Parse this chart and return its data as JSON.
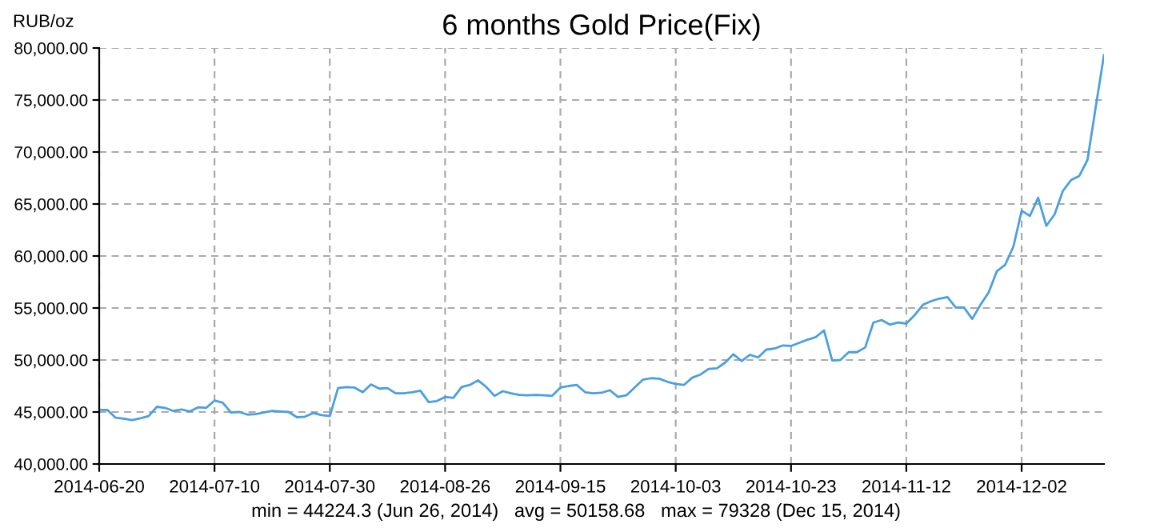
{
  "chart_data": {
    "type": "line",
    "title": "6 months Gold Price(Fix)",
    "ylabel": "RUB/oz",
    "categories": [
      "2014-06-20",
      null,
      null,
      null,
      null,
      null,
      null,
      null,
      null,
      null,
      null,
      null,
      null,
      null,
      "2014-07-10",
      null,
      null,
      null,
      null,
      null,
      null,
      null,
      null,
      null,
      null,
      null,
      null,
      null,
      "2014-07-30",
      null,
      null,
      null,
      null,
      null,
      null,
      null,
      null,
      null,
      null,
      null,
      null,
      null,
      "2014-08-26",
      null,
      null,
      null,
      null,
      null,
      null,
      null,
      null,
      null,
      null,
      null,
      null,
      null,
      "2014-09-15",
      null,
      null,
      null,
      null,
      null,
      null,
      null,
      null,
      null,
      null,
      null,
      null,
      null,
      "2014-10-03",
      null,
      null,
      null,
      null,
      null,
      null,
      null,
      null,
      null,
      null,
      null,
      null,
      null,
      "2014-10-23",
      null,
      null,
      null,
      null,
      null,
      null,
      null,
      null,
      null,
      null,
      null,
      null,
      null,
      "2014-11-12",
      null,
      null,
      null,
      null,
      null,
      null,
      null,
      null,
      null,
      null,
      null,
      null,
      null,
      "2014-12-02",
      null,
      null,
      null,
      null,
      null,
      null,
      null,
      null,
      null,
      null
    ],
    "series": [
      {
        "color": "#4a9fe0",
        "values": [
          45200,
          45200,
          44450,
          44350,
          44224.3,
          44400,
          44600,
          45500,
          45400,
          45100,
          45250,
          45050,
          45450,
          45400,
          46100,
          45900,
          44950,
          45000,
          44750,
          44800,
          44950,
          45100,
          45050,
          45000,
          44500,
          44550,
          44900,
          44700,
          44600,
          47300,
          47400,
          47350,
          46900,
          47650,
          47250,
          47300,
          46800,
          46800,
          46900,
          47050,
          45950,
          46050,
          46450,
          46350,
          47400,
          47600,
          48050,
          47400,
          46550,
          47000,
          46800,
          46650,
          46600,
          46650,
          46600,
          46550,
          47350,
          47500,
          47600,
          46900,
          46800,
          46850,
          47100,
          46450,
          46600,
          47350,
          48100,
          48250,
          48200,
          47900,
          47700,
          47600,
          48300,
          48600,
          49150,
          49200,
          49750,
          50550,
          49900,
          50500,
          50250,
          51000,
          51100,
          51400,
          51350,
          51650,
          51950,
          52200,
          52850,
          49950,
          50000,
          50750,
          50750,
          51200,
          53600,
          53850,
          53400,
          53600,
          53500,
          54300,
          55300,
          55650,
          55900,
          56050,
          55050,
          55050,
          53950,
          55300,
          56500,
          58550,
          59150,
          60900,
          64350,
          63850,
          65600,
          62900,
          64000,
          66250,
          67300,
          67700,
          69250,
          74350,
          79328
        ]
      }
    ],
    "ylim": [
      40000,
      80000
    ],
    "yticks": [
      {
        "value": 40000,
        "label": "40,000.00"
      },
      {
        "value": 45000,
        "label": "45,000.00"
      },
      {
        "value": 50000,
        "label": "50,000.00"
      },
      {
        "value": 55000,
        "label": "55,000.00"
      },
      {
        "value": 60000,
        "label": "60,000.00"
      },
      {
        "value": 65000,
        "label": "65,000.00"
      },
      {
        "value": 70000,
        "label": "70,000.00"
      },
      {
        "value": 75000,
        "label": "75,000.00"
      },
      {
        "value": 80000,
        "label": "80,000.00"
      }
    ],
    "grid": true,
    "legend": false,
    "annotations": [
      "min = 44224.3 (Jun 26, 2014)   avg = 50158.68   max = 79328 (Dec 15, 2014)"
    ]
  }
}
